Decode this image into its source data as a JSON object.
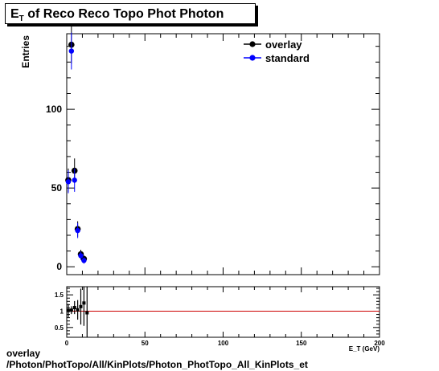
{
  "title": {
    "main": "E",
    "sub": "T",
    "rest": " of Reco Reco Topo Phot Photon"
  },
  "footer": {
    "line1": "overlay",
    "line2": "/Photon/PhotTopo/All/KinPlots/Photon_PhotTopo_All_KinPlots_et"
  },
  "colors": {
    "overlay": "#000000",
    "standard": "#0000ff",
    "ratio_line": "#cc0000"
  },
  "chart_data": [
    {
      "type": "scatter",
      "ylabel": "Entries",
      "xlabel": "E_T (GeV)",
      "xlim": [
        0,
        200
      ],
      "ylim": [
        -5,
        148
      ],
      "yticks": [
        0,
        50,
        100
      ],
      "grid": false,
      "legend_position": "top-right",
      "series": [
        {
          "name": "overlay",
          "color": "#000000",
          "x": [
            1,
            3,
            5,
            7,
            9,
            11
          ],
          "y": [
            55,
            141,
            61,
            24,
            8,
            5
          ],
          "err": [
            7.4,
            11.9,
            7.8,
            4.9,
            2.8,
            2.2
          ]
        },
        {
          "name": "standard",
          "color": "#0000ff",
          "x": [
            1,
            3,
            5,
            7,
            9,
            11
          ],
          "y": [
            54,
            137,
            55,
            23,
            7,
            4
          ],
          "err": [
            7.3,
            11.7,
            7.4,
            4.8,
            2.6,
            2.0
          ]
        }
      ]
    },
    {
      "type": "scatter",
      "xlim": [
        0,
        200
      ],
      "ylim": [
        0.2,
        1.75
      ],
      "xticks": [
        0,
        50,
        100,
        150,
        200
      ],
      "yticks": [
        0.5,
        1,
        1.5
      ],
      "reference_line": 1,
      "x": [
        1,
        3,
        5,
        7,
        9,
        11,
        13
      ],
      "y": [
        1.02,
        1.03,
        1.11,
        1.04,
        1.14,
        1.25,
        0.95
      ],
      "err": [
        0.2,
        0.12,
        0.2,
        0.3,
        0.55,
        0.7,
        1.2
      ]
    }
  ]
}
